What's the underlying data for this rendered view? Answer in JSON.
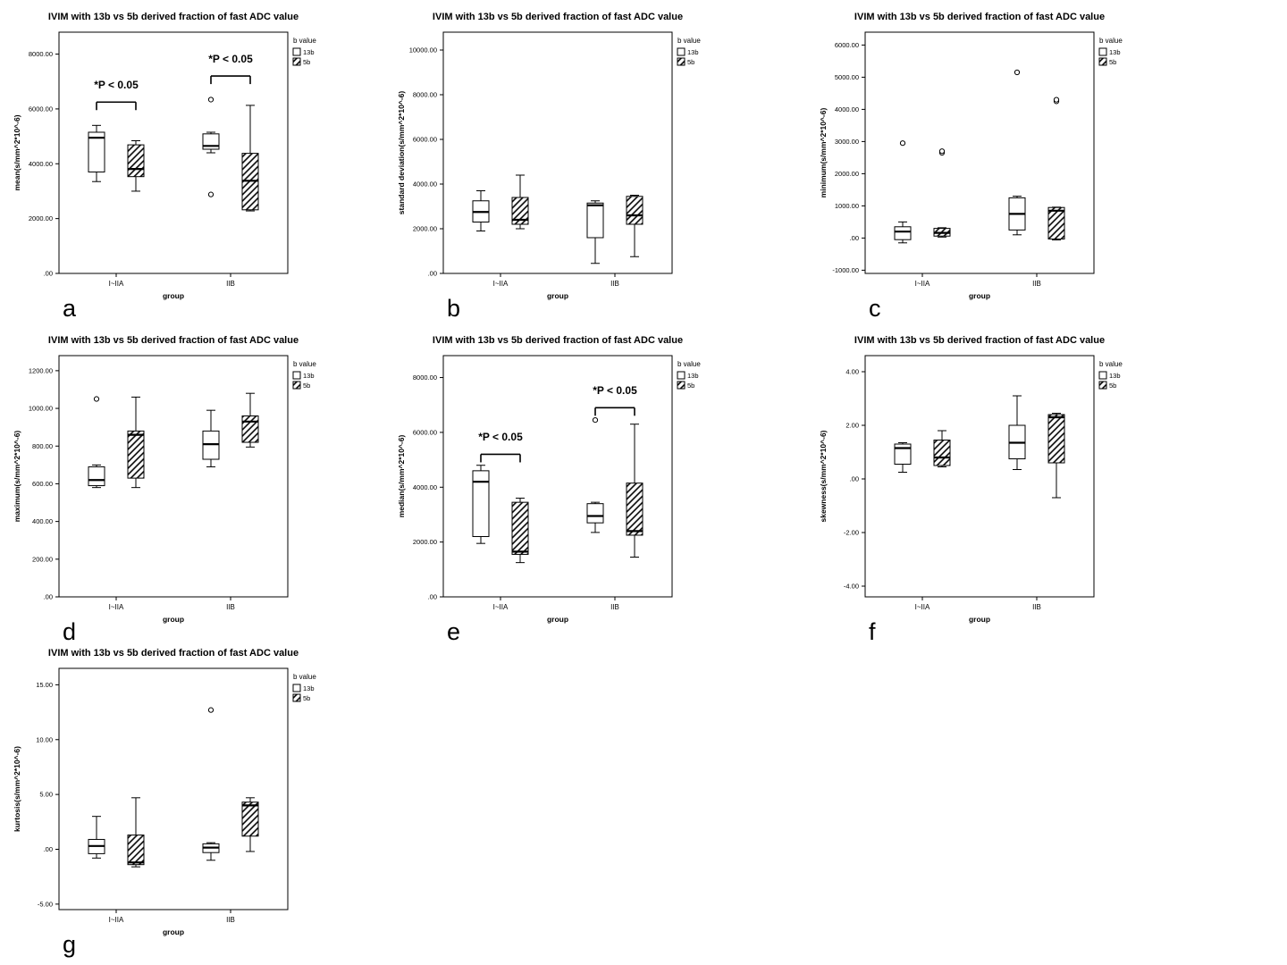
{
  "figure": {
    "background": "#ffffff",
    "box_color": "#000000",
    "fill_open": "#ffffff"
  },
  "chart_data": [
    {
      "type": "boxplot",
      "letter": "a",
      "title": "IVIM with 13b vs 5b derived fraction of fast ADC value",
      "ylabel": "mean(s/mm^2*10^-6)",
      "xlabel": "group",
      "categories": [
        "I~IIA",
        "IIB"
      ],
      "ylim": [
        0,
        8800
      ],
      "yticks": [
        0,
        2000,
        4000,
        6000,
        8000
      ],
      "ytick_labels": [
        ".00",
        "2000.00",
        "4000.00",
        "6000.00",
        "8000.00"
      ],
      "legend": {
        "title": "b value",
        "items": [
          {
            "label": "13b",
            "style": "open"
          },
          {
            "label": "5b",
            "style": "hatch"
          }
        ]
      },
      "series": [
        {
          "name": "13b",
          "style": "open",
          "boxes": [
            {
              "low": 3350,
              "q1": 3700,
              "median": 4950,
              "q3": 5150,
              "high": 5400,
              "outliers": []
            },
            {
              "low": 4400,
              "q1": 4530,
              "median": 4650,
              "q3": 5090,
              "high": 5150,
              "outliers": [
                6340,
                2880
              ]
            }
          ]
        },
        {
          "name": "5b",
          "style": "hatch",
          "boxes": [
            {
              "low": 3000,
              "q1": 3530,
              "median": 3810,
              "q3": 4690,
              "high": 4840,
              "outliers": []
            },
            {
              "low": 2280,
              "q1": 2320,
              "median": 3380,
              "q3": 4380,
              "high": 6130,
              "outliers": []
            }
          ]
        }
      ],
      "annotations": [
        {
          "text": "*P < 0.05",
          "group": 0,
          "y": 6250,
          "text_y": 6750
        },
        {
          "text": "*P < 0.05",
          "group": 1,
          "y": 7200,
          "text_y": 7700
        }
      ]
    },
    {
      "type": "boxplot",
      "letter": "b",
      "title": "IVIM with 13b vs 5b derived fraction of fast ADC value",
      "ylabel": "standard deviation(s/mm^2*10^-6)",
      "xlabel": "group",
      "categories": [
        "I~IIA",
        "IIB"
      ],
      "ylim": [
        0,
        10800
      ],
      "yticks": [
        0,
        2000,
        4000,
        6000,
        8000,
        10000
      ],
      "ytick_labels": [
        ".00",
        "2000.00",
        "4000.00",
        "6000.00",
        "8000.00",
        "10000.00"
      ],
      "legend": {
        "title": "b value",
        "items": [
          {
            "label": "13b",
            "style": "open"
          },
          {
            "label": "5b",
            "style": "hatch"
          }
        ]
      },
      "series": [
        {
          "name": "13b",
          "style": "open",
          "boxes": [
            {
              "low": 1900,
              "q1": 2300,
              "median": 2750,
              "q3": 3250,
              "high": 3700,
              "outliers": []
            },
            {
              "low": 450,
              "q1": 1600,
              "median": 3050,
              "q3": 3150,
              "high": 3250,
              "outliers": []
            }
          ]
        },
        {
          "name": "5b",
          "style": "hatch",
          "boxes": [
            {
              "low": 2000,
              "q1": 2200,
              "median": 2400,
              "q3": 3400,
              "high": 4400,
              "outliers": []
            },
            {
              "low": 750,
              "q1": 2200,
              "median": 2600,
              "q3": 3450,
              "high": 3500,
              "outliers": []
            }
          ]
        }
      ],
      "annotations": []
    },
    {
      "type": "boxplot",
      "letter": "c",
      "title": "IVIM with 13b vs 5b derived fraction of fast ADC value",
      "ylabel": "minimum(s/mm^2*10^-6)",
      "xlabel": "group",
      "categories": [
        "I~IIA",
        "IIB"
      ],
      "ylim": [
        -1100,
        6400
      ],
      "yticks": [
        -1000,
        0,
        1000,
        2000,
        3000,
        4000,
        5000,
        6000
      ],
      "ytick_labels": [
        "-1000.00",
        ".00",
        "1000.00",
        "2000.00",
        "3000.00",
        "4000.00",
        "5000.00",
        "6000.00"
      ],
      "legend": {
        "title": "b value",
        "items": [
          {
            "label": "13b",
            "style": "open"
          },
          {
            "label": "5b",
            "style": "hatch"
          }
        ]
      },
      "series": [
        {
          "name": "13b",
          "style": "open",
          "boxes": [
            {
              "low": -150,
              "q1": -50,
              "median": 200,
              "q3": 350,
              "high": 500,
              "outliers": [
                2950
              ]
            },
            {
              "low": 100,
              "q1": 250,
              "median": 750,
              "q3": 1250,
              "high": 1300,
              "outliers": [
                5150
              ]
            }
          ]
        },
        {
          "name": "5b",
          "style": "hatch",
          "boxes": [
            {
              "low": 30,
              "q1": 60,
              "median": 160,
              "q3": 300,
              "high": 320,
              "outliers": [
                2650,
                2700
              ]
            },
            {
              "low": -60,
              "q1": -30,
              "median": 850,
              "q3": 950,
              "high": 960,
              "outliers": [
                4250,
                4300
              ]
            }
          ]
        }
      ],
      "annotations": []
    },
    {
      "type": "boxplot",
      "letter": "d",
      "title": "IVIM with 13b vs 5b derived fraction of fast ADC value",
      "ylabel": "maximum(s/mm^2*10^-6)",
      "xlabel": "group",
      "categories": [
        "I~IIA",
        "IIB"
      ],
      "ylim": [
        0,
        1280
      ],
      "yticks": [
        0,
        200,
        400,
        600,
        800,
        1000,
        1200
      ],
      "ytick_labels": [
        ".00",
        "200.00",
        "400.00",
        "600.00",
        "800.00",
        "1000.00",
        "1200.00"
      ],
      "legend": {
        "title": "b value",
        "items": [
          {
            "label": "13b",
            "style": "open"
          },
          {
            "label": "5b",
            "style": "hatch"
          }
        ]
      },
      "series": [
        {
          "name": "13b",
          "style": "open",
          "boxes": [
            {
              "low": 580,
              "q1": 590,
              "median": 620,
              "q3": 690,
              "high": 700,
              "outliers": [
                1050
              ]
            },
            {
              "low": 690,
              "q1": 730,
              "median": 810,
              "q3": 880,
              "high": 990,
              "outliers": []
            }
          ]
        },
        {
          "name": "5b",
          "style": "hatch",
          "boxes": [
            {
              "low": 580,
              "q1": 630,
              "median": 860,
              "q3": 880,
              "high": 1060,
              "outliers": []
            },
            {
              "low": 795,
              "q1": 820,
              "median": 930,
              "q3": 960,
              "high": 1080,
              "outliers": []
            }
          ]
        }
      ],
      "annotations": []
    },
    {
      "type": "boxplot",
      "letter": "e",
      "title": "IVIM with 13b vs 5b derived fraction of fast ADC value",
      "ylabel": "median(s/mm^2*10^-6)",
      "xlabel": "group",
      "categories": [
        "I~IIA",
        "IIB"
      ],
      "ylim": [
        0,
        8800
      ],
      "yticks": [
        0,
        2000,
        4000,
        6000,
        8000
      ],
      "ytick_labels": [
        ".00",
        "2000.00",
        "4000.00",
        "6000.00",
        "8000.00"
      ],
      "legend": {
        "title": "b value",
        "items": [
          {
            "label": "13b",
            "style": "open"
          },
          {
            "label": "5b",
            "style": "hatch"
          }
        ]
      },
      "series": [
        {
          "name": "13b",
          "style": "open",
          "boxes": [
            {
              "low": 1950,
              "q1": 2200,
              "median": 4200,
              "q3": 4600,
              "high": 4800,
              "outliers": []
            },
            {
              "low": 2350,
              "q1": 2700,
              "median": 2950,
              "q3": 3400,
              "high": 3450,
              "outliers": [
                6450
              ]
            }
          ]
        },
        {
          "name": "5b",
          "style": "hatch",
          "boxes": [
            {
              "low": 1250,
              "q1": 1550,
              "median": 1650,
              "q3": 3450,
              "high": 3600,
              "outliers": []
            },
            {
              "low": 1450,
              "q1": 2250,
              "median": 2400,
              "q3": 4150,
              "high": 6300,
              "outliers": []
            }
          ]
        }
      ],
      "annotations": [
        {
          "text": "*P < 0.05",
          "group": 0,
          "y": 5200,
          "text_y": 5700
        },
        {
          "text": "*P < 0.05",
          "group": 1,
          "y": 6900,
          "text_y": 7400
        }
      ]
    },
    {
      "type": "boxplot",
      "letter": "f",
      "title": "IVIM with 13b vs 5b derived fraction of fast ADC value",
      "ylabel": "skewness(s/mm^2*10^-6)",
      "xlabel": "group",
      "categories": [
        "I~IIA",
        "IIB"
      ],
      "ylim": [
        -4.4,
        4.6
      ],
      "yticks": [
        -4,
        -2,
        0,
        2,
        4
      ],
      "ytick_labels": [
        "-4.00",
        "-2.00",
        ".00",
        "2.00",
        "4.00"
      ],
      "legend": {
        "title": "b value",
        "items": [
          {
            "label": "13b",
            "style": "open"
          },
          {
            "label": "5b",
            "style": "hatch"
          }
        ]
      },
      "series": [
        {
          "name": "13b",
          "style": "open",
          "boxes": [
            {
              "low": 0.25,
              "q1": 0.55,
              "median": 1.15,
              "q3": 1.3,
              "high": 1.35,
              "outliers": []
            },
            {
              "low": 0.35,
              "q1": 0.75,
              "median": 1.35,
              "q3": 2.0,
              "high": 3.1,
              "outliers": []
            }
          ]
        },
        {
          "name": "5b",
          "style": "hatch",
          "boxes": [
            {
              "low": 0.45,
              "q1": 0.5,
              "median": 0.8,
              "q3": 1.45,
              "high": 1.8,
              "outliers": []
            },
            {
              "low": -0.7,
              "q1": 0.6,
              "median": 2.3,
              "q3": 2.4,
              "high": 2.45,
              "outliers": []
            }
          ]
        }
      ],
      "annotations": []
    },
    {
      "type": "boxplot",
      "letter": "g",
      "title": "IVIM with 13b vs 5b derived fraction of fast ADC value",
      "ylabel": "kurtosis(s/mm^2*10^-6)",
      "xlabel": "group",
      "categories": [
        "I~IIA",
        "IIB"
      ],
      "ylim": [
        -5.5,
        16.5
      ],
      "yticks": [
        -5,
        0,
        5,
        10,
        15
      ],
      "ytick_labels": [
        "-5.00",
        ".00",
        "5.00",
        "10.00",
        "15.00"
      ],
      "legend": {
        "title": "b value",
        "items": [
          {
            "label": "13b",
            "style": "open"
          },
          {
            "label": "5b",
            "style": "hatch"
          }
        ]
      },
      "series": [
        {
          "name": "13b",
          "style": "open",
          "boxes": [
            {
              "low": -0.8,
              "q1": -0.4,
              "median": 0.3,
              "q3": 0.9,
              "high": 3.0,
              "outliers": []
            },
            {
              "low": -1.0,
              "q1": -0.3,
              "median": 0.15,
              "q3": 0.5,
              "high": 0.6,
              "outliers": [
                12.7
              ]
            }
          ]
        },
        {
          "name": "5b",
          "style": "hatch",
          "boxes": [
            {
              "low": -1.6,
              "q1": -1.4,
              "median": -1.2,
              "q3": 1.3,
              "high": 4.7,
              "outliers": []
            },
            {
              "low": -0.2,
              "q1": 1.2,
              "median": 4.0,
              "q3": 4.3,
              "high": 4.7,
              "outliers": []
            }
          ]
        }
      ],
      "annotations": []
    }
  ]
}
